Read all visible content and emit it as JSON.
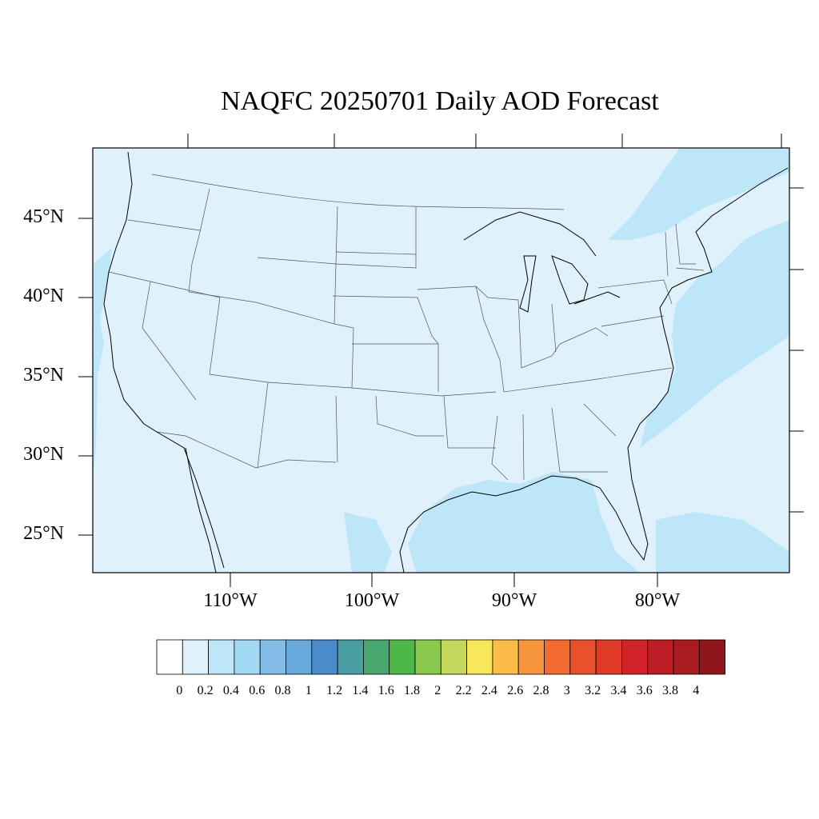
{
  "title": "NAQFC 20250701 Daily AOD Forecast",
  "lat_labels": [
    "45°N",
    "40°N",
    "35°N",
    "30°N",
    "25°N"
  ],
  "lon_labels": [
    "110°W",
    "100°W",
    "90°W",
    "80°W"
  ],
  "colorbar": {
    "colors": [
      "#ffffff",
      "#dff2fb",
      "#bde6f8",
      "#a1d8f4",
      "#83bde7",
      "#68a8db",
      "#4a8bca",
      "#4a9ea3",
      "#48a76e",
      "#4db848",
      "#8bc84e",
      "#c4d75a",
      "#f8e65b",
      "#f9bd48",
      "#f8963d",
      "#f46b31",
      "#e9512c",
      "#de3a27",
      "#d2232a",
      "#bd1e26",
      "#a81b21",
      "#8f171b"
    ],
    "labels": [
      "0",
      "0.2",
      "0.4",
      "0.6",
      "0.8",
      "1",
      "1.2",
      "1.4",
      "1.6",
      "1.8",
      "2",
      "2.2",
      "2.4",
      "2.6",
      "2.8",
      "3",
      "3.2",
      "3.4",
      "3.6",
      "3.8",
      "4"
    ]
  },
  "map": {
    "ocean_color": "#bde6f8",
    "land_color": "#dff2fb"
  }
}
